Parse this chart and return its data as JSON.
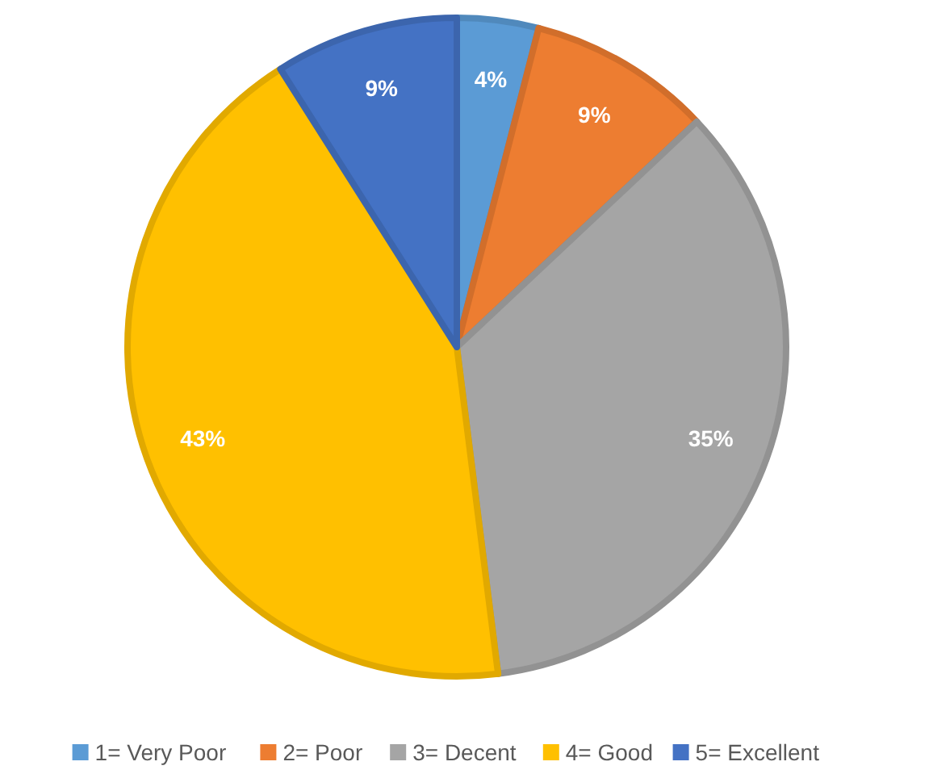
{
  "chart_data": {
    "type": "pie",
    "categories": [
      "1= Very Poor",
      "2= Poor",
      "3= Decent",
      "4= Good",
      "5= Excellent"
    ],
    "values": [
      4,
      9,
      35,
      43,
      9
    ],
    "colors": [
      "#5b9bd5",
      "#ed7d31",
      "#a5a5a5",
      "#ffc000",
      "#4472c4"
    ],
    "value_labels": [
      "4%",
      "9%",
      "35%",
      "43%",
      "9%"
    ],
    "legend": "bottom"
  }
}
